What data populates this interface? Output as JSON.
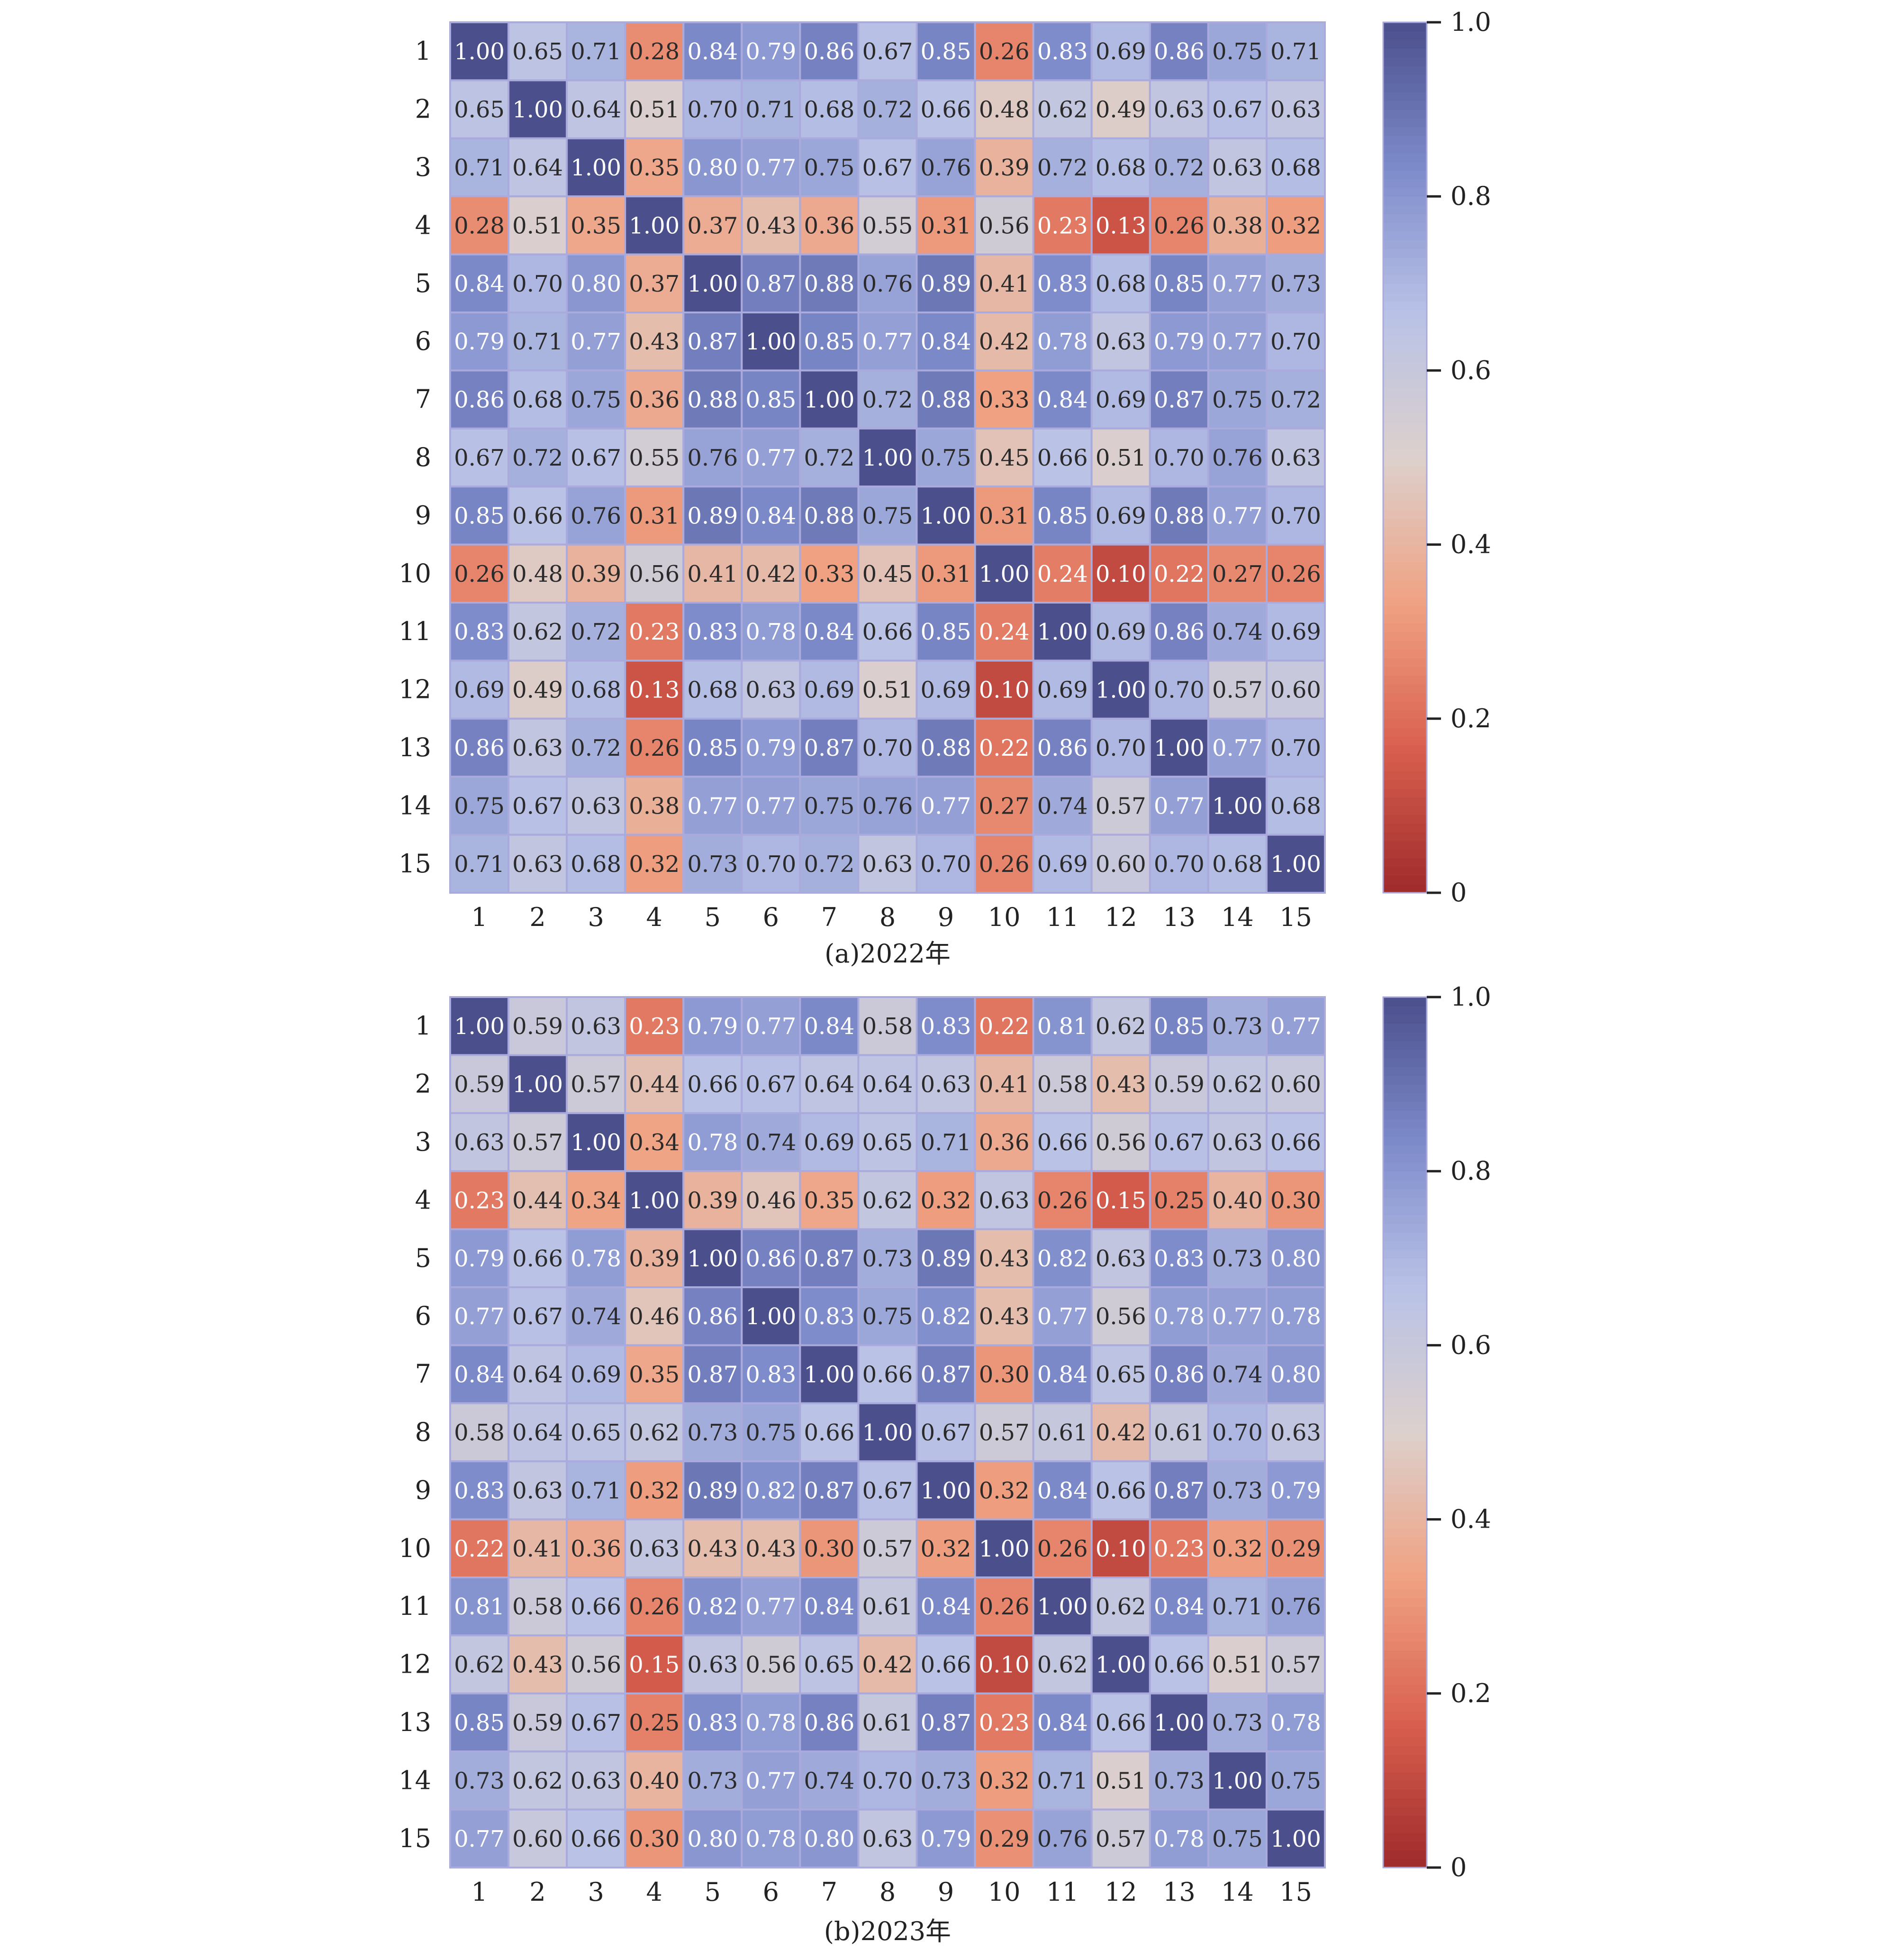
{
  "chart_data": [
    {
      "type": "heatmap",
      "caption": "(a)2022年",
      "row_labels": [
        "1",
        "2",
        "3",
        "4",
        "5",
        "6",
        "7",
        "8",
        "9",
        "10",
        "11",
        "12",
        "13",
        "14",
        "15"
      ],
      "col_labels": [
        "1",
        "2",
        "3",
        "4",
        "5",
        "6",
        "7",
        "8",
        "9",
        "10",
        "11",
        "12",
        "13",
        "14",
        "15"
      ],
      "colorbar": {
        "range": [
          0,
          1.0
        ],
        "ticks": [
          "0",
          "0.2",
          "0.4",
          "0.6",
          "0.8",
          "1.0"
        ],
        "colors": [
          "#9e2a2b",
          "#d9604f",
          "#f0a283",
          "#dcd0cc",
          "#b9c2e6",
          "#7d8bcb",
          "#4b4f8c"
        ]
      },
      "annotated": true,
      "values": [
        [
          1.0,
          0.65,
          0.71,
          0.28,
          0.84,
          0.79,
          0.86,
          0.67,
          0.85,
          0.26,
          0.83,
          0.69,
          0.86,
          0.75,
          0.71
        ],
        [
          0.65,
          1.0,
          0.64,
          0.51,
          0.7,
          0.71,
          0.68,
          0.72,
          0.66,
          0.48,
          0.62,
          0.49,
          0.63,
          0.67,
          0.63
        ],
        [
          0.71,
          0.64,
          1.0,
          0.35,
          0.8,
          0.77,
          0.75,
          0.67,
          0.76,
          0.39,
          0.72,
          0.68,
          0.72,
          0.63,
          0.68
        ],
        [
          0.28,
          0.51,
          0.35,
          1.0,
          0.37,
          0.43,
          0.36,
          0.55,
          0.31,
          0.56,
          0.23,
          0.13,
          0.26,
          0.38,
          0.32
        ],
        [
          0.84,
          0.7,
          0.8,
          0.37,
          1.0,
          0.87,
          0.88,
          0.76,
          0.89,
          0.41,
          0.83,
          0.68,
          0.85,
          0.77,
          0.73
        ],
        [
          0.79,
          0.71,
          0.77,
          0.43,
          0.87,
          1.0,
          0.85,
          0.77,
          0.84,
          0.42,
          0.78,
          0.63,
          0.79,
          0.77,
          0.7
        ],
        [
          0.86,
          0.68,
          0.75,
          0.36,
          0.88,
          0.85,
          1.0,
          0.72,
          0.88,
          0.33,
          0.84,
          0.69,
          0.87,
          0.75,
          0.72
        ],
        [
          0.67,
          0.72,
          0.67,
          0.55,
          0.76,
          0.77,
          0.72,
          1.0,
          0.75,
          0.45,
          0.66,
          0.51,
          0.7,
          0.76,
          0.63
        ],
        [
          0.85,
          0.66,
          0.76,
          0.31,
          0.89,
          0.84,
          0.88,
          0.75,
          1.0,
          0.31,
          0.85,
          0.69,
          0.88,
          0.77,
          0.7
        ],
        [
          0.26,
          0.48,
          0.39,
          0.56,
          0.41,
          0.42,
          0.33,
          0.45,
          0.31,
          1.0,
          0.24,
          0.1,
          0.22,
          0.27,
          0.26
        ],
        [
          0.83,
          0.62,
          0.72,
          0.23,
          0.83,
          0.78,
          0.84,
          0.66,
          0.85,
          0.24,
          1.0,
          0.69,
          0.86,
          0.74,
          0.69
        ],
        [
          0.69,
          0.49,
          0.68,
          0.13,
          0.68,
          0.63,
          0.69,
          0.51,
          0.69,
          0.1,
          0.69,
          1.0,
          0.7,
          0.57,
          0.6
        ],
        [
          0.86,
          0.63,
          0.72,
          0.26,
          0.85,
          0.79,
          0.87,
          0.7,
          0.88,
          0.22,
          0.86,
          0.7,
          1.0,
          0.77,
          0.7
        ],
        [
          0.75,
          0.67,
          0.63,
          0.38,
          0.77,
          0.77,
          0.75,
          0.76,
          0.77,
          0.27,
          0.74,
          0.57,
          0.77,
          1.0,
          0.68
        ],
        [
          0.71,
          0.63,
          0.68,
          0.32,
          0.73,
          0.7,
          0.72,
          0.63,
          0.7,
          0.26,
          0.69,
          0.6,
          0.7,
          0.68,
          1.0
        ]
      ]
    },
    {
      "type": "heatmap",
      "caption": "(b)2023年",
      "row_labels": [
        "1",
        "2",
        "3",
        "4",
        "5",
        "6",
        "7",
        "8",
        "9",
        "10",
        "11",
        "12",
        "13",
        "14",
        "15"
      ],
      "col_labels": [
        "1",
        "2",
        "3",
        "4",
        "5",
        "6",
        "7",
        "8",
        "9",
        "10",
        "11",
        "12",
        "13",
        "14",
        "15"
      ],
      "colorbar": {
        "range": [
          0,
          1.0
        ],
        "ticks": [
          "0",
          "0.2",
          "0.4",
          "0.6",
          "0.8",
          "1.0"
        ],
        "colors": [
          "#9e2a2b",
          "#d9604f",
          "#f0a283",
          "#dcd0cc",
          "#b9c2e6",
          "#7d8bcb",
          "#4b4f8c"
        ]
      },
      "annotated": true,
      "values": [
        [
          1.0,
          0.59,
          0.63,
          0.23,
          0.79,
          0.77,
          0.84,
          0.58,
          0.83,
          0.22,
          0.81,
          0.62,
          0.85,
          0.73,
          0.77
        ],
        [
          0.59,
          1.0,
          0.57,
          0.44,
          0.66,
          0.67,
          0.64,
          0.64,
          0.63,
          0.41,
          0.58,
          0.43,
          0.59,
          0.62,
          0.6
        ],
        [
          0.63,
          0.57,
          1.0,
          0.34,
          0.78,
          0.74,
          0.69,
          0.65,
          0.71,
          0.36,
          0.66,
          0.56,
          0.67,
          0.63,
          0.66
        ],
        [
          0.23,
          0.44,
          0.34,
          1.0,
          0.39,
          0.46,
          0.35,
          0.62,
          0.32,
          0.63,
          0.26,
          0.15,
          0.25,
          0.4,
          0.3
        ],
        [
          0.79,
          0.66,
          0.78,
          0.39,
          1.0,
          0.86,
          0.87,
          0.73,
          0.89,
          0.43,
          0.82,
          0.63,
          0.83,
          0.73,
          0.8
        ],
        [
          0.77,
          0.67,
          0.74,
          0.46,
          0.86,
          1.0,
          0.83,
          0.75,
          0.82,
          0.43,
          0.77,
          0.56,
          0.78,
          0.77,
          0.78
        ],
        [
          0.84,
          0.64,
          0.69,
          0.35,
          0.87,
          0.83,
          1.0,
          0.66,
          0.87,
          0.3,
          0.84,
          0.65,
          0.86,
          0.74,
          0.8
        ],
        [
          0.58,
          0.64,
          0.65,
          0.62,
          0.73,
          0.75,
          0.66,
          1.0,
          0.67,
          0.57,
          0.61,
          0.42,
          0.61,
          0.7,
          0.63
        ],
        [
          0.83,
          0.63,
          0.71,
          0.32,
          0.89,
          0.82,
          0.87,
          0.67,
          1.0,
          0.32,
          0.84,
          0.66,
          0.87,
          0.73,
          0.79
        ],
        [
          0.22,
          0.41,
          0.36,
          0.63,
          0.43,
          0.43,
          0.3,
          0.57,
          0.32,
          1.0,
          0.26,
          0.1,
          0.23,
          0.32,
          0.29
        ],
        [
          0.81,
          0.58,
          0.66,
          0.26,
          0.82,
          0.77,
          0.84,
          0.61,
          0.84,
          0.26,
          1.0,
          0.62,
          0.84,
          0.71,
          0.76
        ],
        [
          0.62,
          0.43,
          0.56,
          0.15,
          0.63,
          0.56,
          0.65,
          0.42,
          0.66,
          0.1,
          0.62,
          1.0,
          0.66,
          0.51,
          0.57
        ],
        [
          0.85,
          0.59,
          0.67,
          0.25,
          0.83,
          0.78,
          0.86,
          0.61,
          0.87,
          0.23,
          0.84,
          0.66,
          1.0,
          0.73,
          0.78
        ],
        [
          0.73,
          0.62,
          0.63,
          0.4,
          0.73,
          0.77,
          0.74,
          0.7,
          0.73,
          0.32,
          0.71,
          0.51,
          0.73,
          1.0,
          0.75
        ],
        [
          0.77,
          0.6,
          0.66,
          0.3,
          0.8,
          0.78,
          0.8,
          0.63,
          0.79,
          0.29,
          0.76,
          0.57,
          0.78,
          0.75,
          1.0
        ]
      ]
    }
  ]
}
